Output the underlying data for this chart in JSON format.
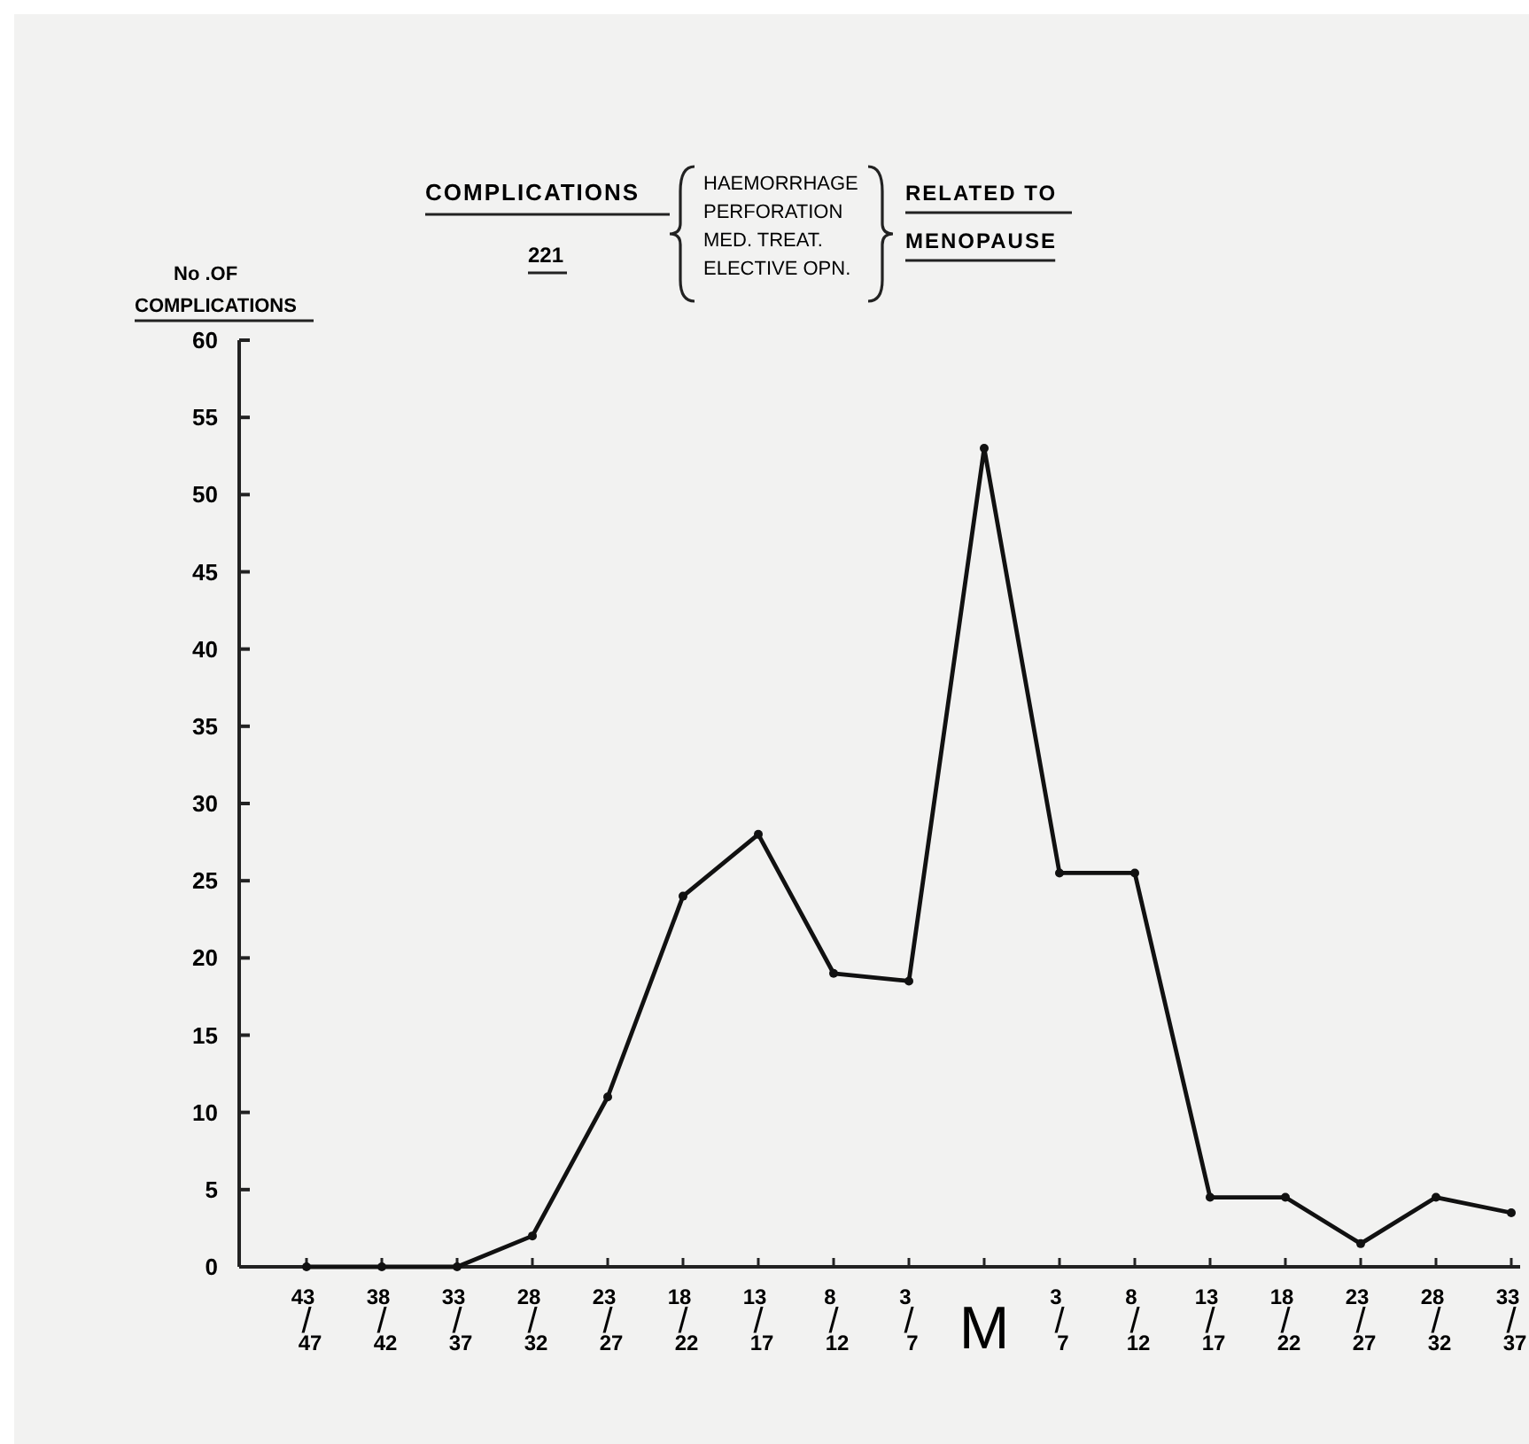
{
  "chart_data": {
    "type": "line",
    "title": "COMPLICATIONS",
    "subtitle": "221",
    "annotations": [
      "HAEMORRHAGE",
      "PERFORATION",
      "MED. TREAT.",
      "ELECTIVE OPN.",
      "RELATED TO",
      "MENOPAUSE"
    ],
    "ylabel": "No .OF\nCOMPLICATIONS",
    "categories": [
      "43/47",
      "38/42",
      "33/37",
      "28/32",
      "23/27",
      "18/22",
      "13/17",
      "8/12",
      "3/7",
      "M",
      "3/7",
      "8/12",
      "13/17",
      "18/22",
      "23/27",
      "28/32",
      "33/37"
    ],
    "series": [
      {
        "color": "#111111",
        "values": [
          0,
          0,
          0,
          2,
          11,
          24,
          28,
          19,
          18.5,
          53,
          25.5,
          25.5,
          4.5,
          4.5,
          1.5,
          4.5,
          3.5
        ]
      }
    ],
    "ylim": [
      0,
      60
    ],
    "yticks": [
      0,
      5,
      10,
      15,
      20,
      25,
      30,
      35,
      40,
      45,
      50,
      55,
      60
    ],
    "marker": "circle",
    "line_style": "solid",
    "grid": false
  }
}
